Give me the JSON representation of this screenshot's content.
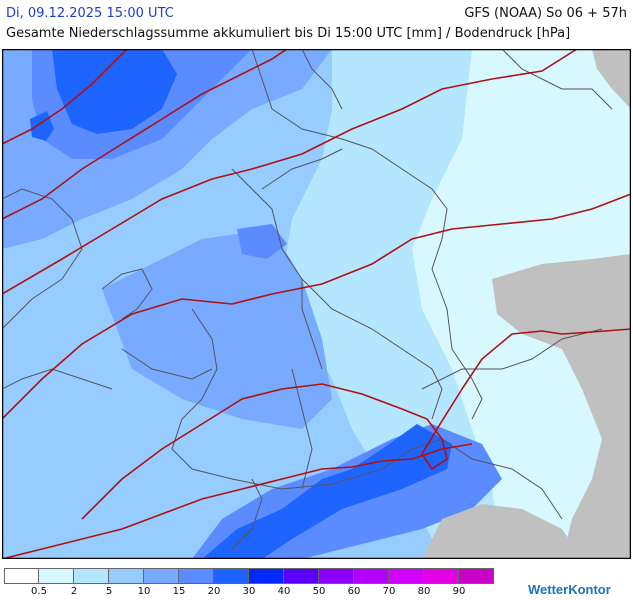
{
  "header": {
    "datetime": "Di, 09.12.2025 15:00 UTC",
    "model": "GFS (NOAA) So 06 + 57h",
    "subtitle": "Gesamte Niederschlagssumme akkumuliert bis Di 15:00 UTC [mm] / Bodendruck [hPa]"
  },
  "legend": {
    "labels": [
      "0.5",
      "2",
      "5",
      "10",
      "15",
      "20",
      "30",
      "40",
      "50",
      "60",
      "70",
      "80",
      "90"
    ],
    "colors": [
      "#ffffff",
      "#d8f8ff",
      "#b4e6ff",
      "#96ccff",
      "#78aaff",
      "#5a8cff",
      "#1e64ff",
      "#0028ff",
      "#5a00ff",
      "#8c00ff",
      "#b400ff",
      "#d200ff",
      "#e600e6",
      "#c800c8"
    ]
  },
  "brand": {
    "name": "WetterKontor"
  },
  "colors": {
    "land_outside": "#c0c0c0",
    "isobar": "#b01010",
    "border": "#555555",
    "header_date": "#1a3fd0"
  }
}
